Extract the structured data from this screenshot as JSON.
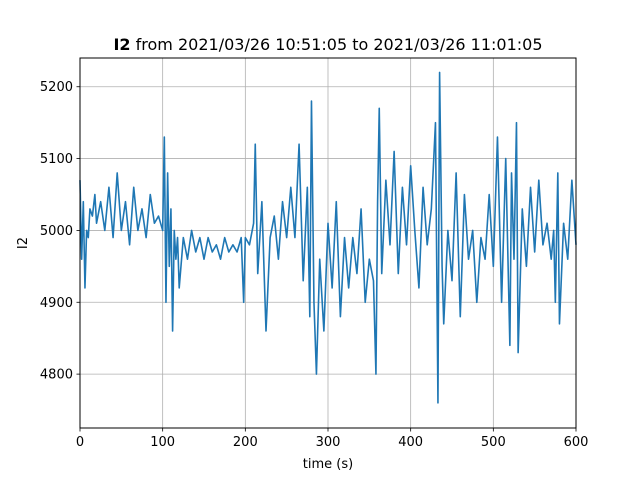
{
  "chart_data": {
    "type": "line",
    "title_bold": "I2",
    "title_rest": " from 2021/03/26 10:51:05 to 2021/03/26 11:01:05",
    "xlabel": "time (s)",
    "ylabel": "I2",
    "xlim": [
      0,
      600
    ],
    "ylim": [
      4725,
      5240
    ],
    "xticks": [
      0,
      100,
      200,
      300,
      400,
      500,
      600
    ],
    "yticks": [
      4800,
      4900,
      5000,
      5100,
      5200
    ],
    "grid": true,
    "series": [
      {
        "color": "#1f77b4",
        "x": [
          0,
          2,
          4,
          6,
          8,
          10,
          12,
          15,
          18,
          20,
          25,
          30,
          35,
          40,
          45,
          50,
          55,
          60,
          65,
          70,
          75,
          80,
          85,
          90,
          95,
          100,
          102,
          104,
          106,
          108,
          110,
          112,
          114,
          116,
          118,
          120,
          125,
          130,
          135,
          140,
          145,
          150,
          155,
          160,
          165,
          170,
          175,
          180,
          185,
          190,
          195,
          198,
          200,
          205,
          210,
          212,
          215,
          220,
          225,
          230,
          235,
          240,
          245,
          250,
          255,
          260,
          265,
          270,
          275,
          278,
          280,
          283,
          286,
          290,
          295,
          300,
          305,
          310,
          315,
          320,
          325,
          330,
          335,
          340,
          345,
          350,
          355,
          358,
          360,
          362,
          365,
          370,
          375,
          380,
          385,
          390,
          395,
          400,
          405,
          410,
          415,
          420,
          425,
          430,
          433,
          435,
          438,
          440,
          445,
          450,
          455,
          460,
          465,
          470,
          475,
          480,
          485,
          490,
          495,
          500,
          505,
          510,
          515,
          520,
          522,
          525,
          528,
          530,
          535,
          540,
          545,
          550,
          555,
          560,
          565,
          570,
          573,
          575,
          578,
          580,
          585,
          590,
          595,
          600
        ],
        "values": [
          5070,
          4960,
          5040,
          4920,
          5000,
          4990,
          5030,
          5020,
          5050,
          5010,
          5040,
          5000,
          5060,
          4990,
          5080,
          5000,
          5040,
          4980,
          5060,
          5000,
          5030,
          4990,
          5050,
          5010,
          5020,
          5000,
          5130,
          4900,
          5080,
          4950,
          5030,
          4860,
          5000,
          4960,
          4990,
          4920,
          4990,
          4960,
          5000,
          4970,
          4990,
          4960,
          4990,
          4970,
          4980,
          4960,
          4990,
          4970,
          4980,
          4970,
          4990,
          4900,
          4990,
          4980,
          5010,
          5120,
          4940,
          5040,
          4860,
          4990,
          5020,
          4960,
          5040,
          4990,
          5060,
          4990,
          5120,
          4930,
          5060,
          4880,
          5180,
          4900,
          4800,
          4960,
          4860,
          5010,
          4920,
          5040,
          4880,
          4990,
          4920,
          4990,
          4940,
          5030,
          4900,
          4960,
          4930,
          4800,
          5040,
          5170,
          4940,
          5070,
          4980,
          5110,
          4940,
          5060,
          4980,
          5090,
          5000,
          4920,
          5060,
          4980,
          5030,
          5150,
          4760,
          5220,
          4950,
          4870,
          5000,
          4930,
          5080,
          4880,
          5050,
          4960,
          5000,
          4900,
          4990,
          4960,
          5050,
          4950,
          5130,
          4900,
          5100,
          4840,
          5080,
          4960,
          5150,
          4830,
          5030,
          4950,
          5060,
          4970,
          5070,
          4980,
          5010,
          4960,
          5000,
          4900,
          5080,
          4870,
          5010,
          4960,
          5070,
          4980
        ]
      }
    ]
  }
}
